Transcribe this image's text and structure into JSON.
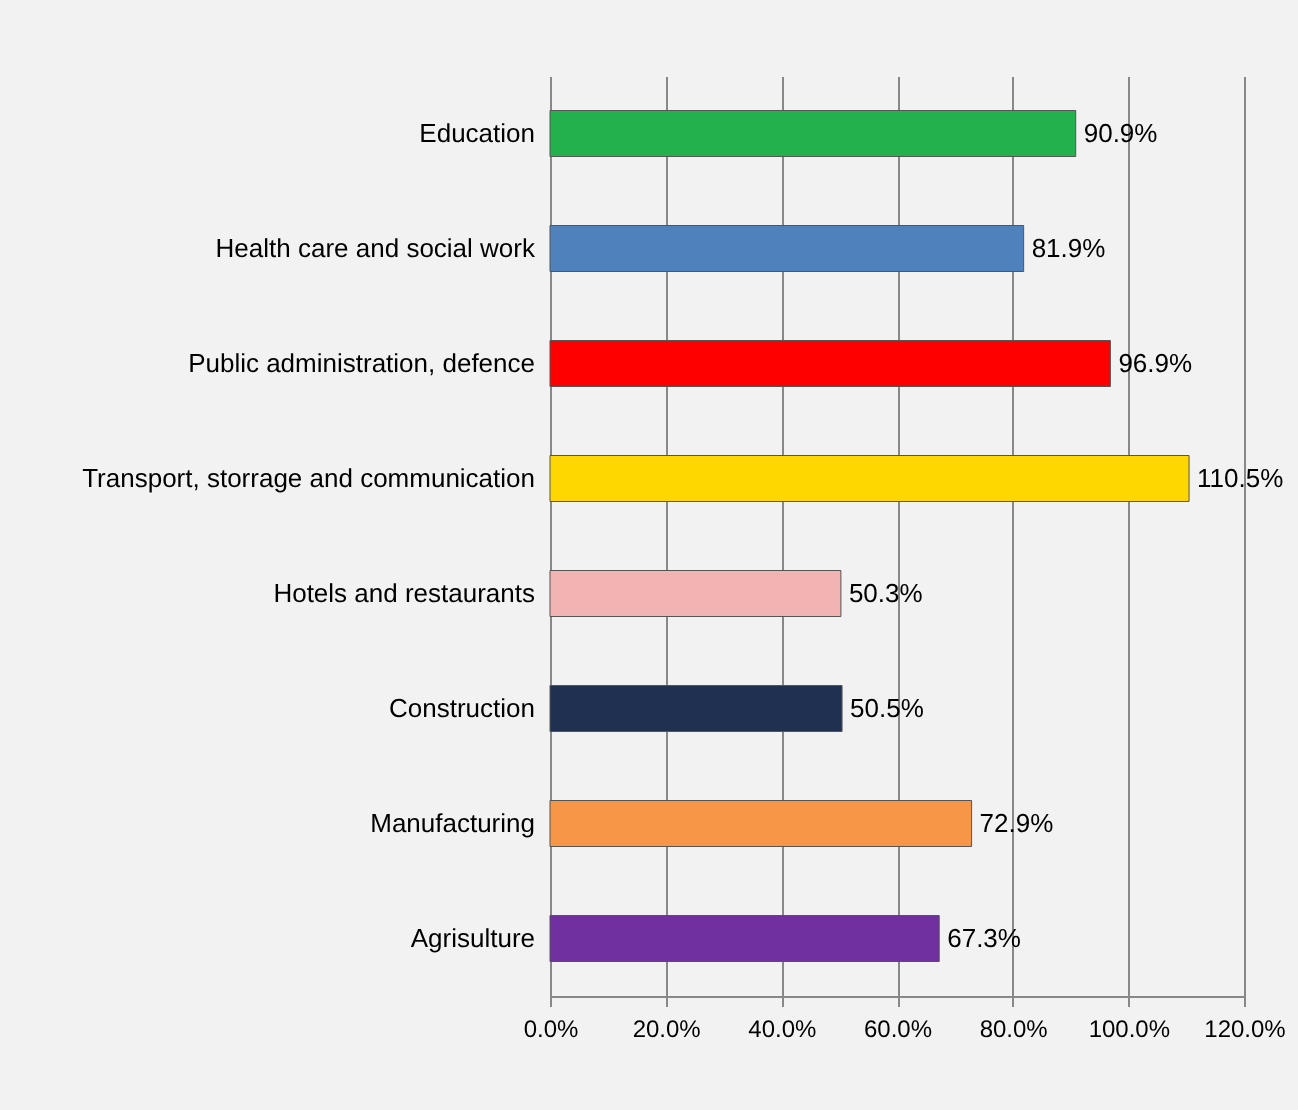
{
  "chart_data": {
    "type": "bar",
    "orientation": "horizontal",
    "categories": [
      "Education",
      "Health care and social work",
      "Public administration, defence",
      "Transport, storrage and communication",
      "Hotels and restaurants",
      "Construction",
      "Manufacturing",
      "Agrisulture"
    ],
    "values": [
      90.9,
      81.9,
      96.9,
      110.5,
      50.3,
      50.5,
      72.9,
      67.3
    ],
    "colors": [
      "#22b14c",
      "#4f81bd",
      "#ff0000",
      "#ffd700",
      "#f2b3b3",
      "#1f3050",
      "#f79646",
      "#7030a0"
    ],
    "value_labels": [
      "90.9%",
      "81.9%",
      "96.9%",
      "110.5%",
      "50.3%",
      "50.5%",
      "72.9%",
      "67.3%"
    ],
    "xlim": [
      0,
      120
    ],
    "xticks": [
      {
        "value": 0,
        "label": "0.0%"
      },
      {
        "value": 20,
        "label": "20.0%"
      },
      {
        "value": 40,
        "label": "40.0%"
      },
      {
        "value": 60,
        "label": "60.0%"
      },
      {
        "value": 80,
        "label": "80.0%"
      },
      {
        "value": 100,
        "label": "100.0%"
      },
      {
        "value": 120,
        "label": "120.0%"
      }
    ],
    "grid": "x"
  }
}
